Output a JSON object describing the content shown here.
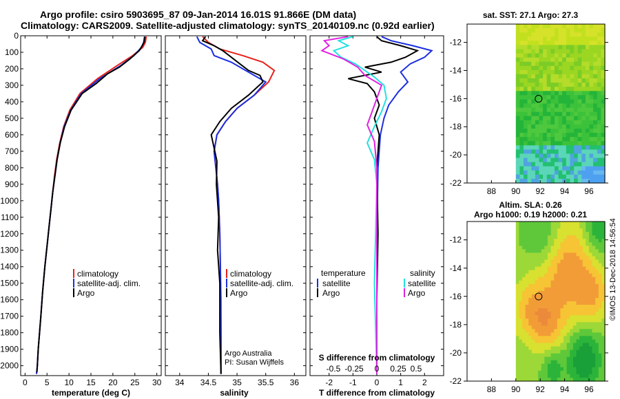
{
  "titles": {
    "line1": "Argo profile: csiro 5903695_87 09-Jan-2014 16.01S 91.866E (DM data)",
    "line2": "Climatology: CARS2009. Satellite-adjusted climatology: synTS_20140109.nc (0.92d earlier)"
  },
  "colors": {
    "climatology": "#e8201a",
    "satellite": "#1a2ee0",
    "argo": "#000000",
    "sat_t": "#1a2ee0",
    "sat_s": "#22e0e0",
    "argo_t": "#000000",
    "argo_s": "#e020e0"
  },
  "chart_data": [
    {
      "id": "temperature",
      "type": "line",
      "xlabel": "temperature (deg C)",
      "ylabel": "",
      "xlim": [
        -1,
        31
      ],
      "ylim": [
        2060,
        0
      ],
      "xticks": [
        0,
        5,
        10,
        15,
        20,
        25,
        30
      ],
      "yticks": [
        0,
        100,
        200,
        300,
        400,
        500,
        600,
        700,
        800,
        900,
        1000,
        1100,
        1200,
        1300,
        1400,
        1500,
        1600,
        1700,
        1800,
        1900,
        2000
      ],
      "legend": [
        "climatology",
        "satellite-adj. clim.",
        "Argo"
      ],
      "series": [
        {
          "name": "climatology",
          "color": "#e8201a",
          "x": [
            27.6,
            27.4,
            26.8,
            24.5,
            21,
            16.5,
            12.5,
            10.2,
            8.8,
            7.9,
            7.2,
            6.7,
            6.3,
            5.9,
            5.5,
            5.1,
            4.5,
            4.0,
            3.6,
            3.3,
            3.0,
            2.8,
            2.6
          ],
          "depth": [
            5,
            40,
            70,
            120,
            180,
            260,
            350,
            450,
            550,
            650,
            750,
            850,
            950,
            1050,
            1150,
            1250,
            1400,
            1550,
            1700,
            1800,
            1900,
            2000,
            2050
          ]
        },
        {
          "name": "satellite-adj. clim.",
          "color": "#1a2ee0",
          "x": [
            27.2,
            27.0,
            26.5,
            24.8,
            21.8,
            17,
            12.8,
            10.4,
            8.9,
            8.0,
            7.3,
            6.8,
            6.3,
            5.9,
            5.5,
            5.1,
            4.5,
            4.0,
            3.6,
            3.3,
            3.0,
            2.8,
            2.6
          ],
          "depth": [
            5,
            40,
            70,
            120,
            180,
            260,
            350,
            450,
            550,
            650,
            750,
            850,
            950,
            1050,
            1150,
            1250,
            1400,
            1550,
            1700,
            1800,
            1900,
            2000,
            2050
          ]
        },
        {
          "name": "Argo",
          "color": "#000000",
          "x": [
            27.3,
            27.1,
            26.0,
            23.9,
            21.5,
            18.8,
            16.2,
            13.0,
            10.5,
            9.0,
            8.0,
            7.3,
            6.8,
            6.3,
            5.9,
            5.5,
            5.1,
            4.5,
            4.0,
            3.6,
            3.3,
            3.0,
            2.8,
            2.7
          ],
          "depth": [
            5,
            40,
            90,
            140,
            190,
            230,
            290,
            350,
            450,
            550,
            650,
            750,
            850,
            950,
            1050,
            1150,
            1250,
            1400,
            1550,
            1700,
            1800,
            1900,
            2000,
            2040
          ]
        }
      ]
    },
    {
      "id": "salinity",
      "type": "line",
      "xlabel": "salinity",
      "xlim": [
        33.75,
        36.2
      ],
      "ylim": [
        2060,
        0
      ],
      "xticks": [
        34,
        34.5,
        35,
        35.5,
        36
      ],
      "legend": [
        "climatology",
        "satellite-adj. clim.",
        "Argo"
      ],
      "series": [
        {
          "name": "climatology",
          "color": "#e8201a",
          "x": [
            34.4,
            34.5,
            34.7,
            35.1,
            35.45,
            35.65,
            35.55,
            35.3,
            35.0,
            34.8,
            34.65,
            34.6,
            34.63,
            34.66,
            34.68,
            34.7,
            34.71,
            34.72,
            34.72,
            34.72
          ],
          "depth": [
            5,
            40,
            80,
            120,
            160,
            210,
            280,
            360,
            440,
            520,
            600,
            700,
            800,
            900,
            1000,
            1200,
            1400,
            1600,
            1800,
            2050
          ]
        },
        {
          "name": "satellite-adj. clim.",
          "color": "#1a2ee0",
          "x": [
            34.3,
            34.35,
            34.55,
            34.6,
            34.9,
            35.1,
            35.3,
            35.5,
            35.3,
            35.0,
            34.8,
            34.65,
            34.6,
            34.63,
            34.66,
            34.68,
            34.7,
            34.71,
            34.72,
            34.72
          ],
          "depth": [
            5,
            40,
            80,
            120,
            160,
            200,
            240,
            280,
            360,
            440,
            520,
            600,
            700,
            800,
            900,
            1000,
            1200,
            1400,
            1800,
            2050
          ]
        },
        {
          "name": "Argo",
          "color": "#000000",
          "x": [
            34.45,
            34.4,
            34.6,
            34.75,
            34.9,
            35.05,
            35.2,
            35.4,
            35.45,
            35.2,
            34.9,
            34.7,
            34.55,
            34.6,
            34.65,
            34.64,
            34.68,
            34.66,
            34.7,
            34.7,
            34.72
          ],
          "depth": [
            5,
            30,
            60,
            90,
            130,
            170,
            210,
            240,
            280,
            360,
            440,
            520,
            600,
            680,
            760,
            900,
            1100,
            1300,
            1500,
            1800,
            2050
          ]
        }
      ]
    },
    {
      "id": "difference",
      "type": "line",
      "xlabel": "T difference from climatology",
      "xlim": [
        -2.8,
        2.8
      ],
      "ylim": [
        2060,
        0
      ],
      "xticks": [
        -2,
        -1,
        0,
        1,
        2
      ],
      "s_axis_label": "S difference from climatology",
      "s_ticks": [
        "-0.5",
        "-0.25",
        "0",
        "0.25",
        "0.5"
      ],
      "legend_left": {
        "title": "temperature",
        "items": [
          "satellite",
          "Argo"
        ]
      },
      "legend_right": {
        "title": "salinity",
        "items": [
          "satellite",
          "Argo"
        ]
      },
      "series": [
        {
          "name": "temperature satellite",
          "color": "#1a2ee0",
          "x": [
            0.2,
            0.6,
            1.5,
            2.3,
            2.0,
            1.4,
            1.0,
            1.3,
            0.9,
            0.5,
            0.3,
            0.15,
            0.05,
            0,
            0,
            0
          ],
          "depth": [
            5,
            30,
            60,
            90,
            130,
            170,
            220,
            280,
            340,
            420,
            500,
            600,
            800,
            1200,
            1600,
            2050
          ]
        },
        {
          "name": "temperature Argo",
          "color": "#000000",
          "x": [
            0,
            0.2,
            1.0,
            1.7,
            1.2,
            0.6,
            -0.5,
            0.2,
            -1.2,
            -0.4,
            -0.1,
            0.1,
            -0.1,
            0.1,
            0,
            0.05,
            0,
            0
          ],
          "depth": [
            5,
            30,
            60,
            90,
            130,
            160,
            190,
            220,
            260,
            290,
            340,
            420,
            500,
            600,
            800,
            1200,
            1600,
            2050
          ]
        },
        {
          "name": "salinity satellite",
          "color": "#22e0e0",
          "x": [
            -1.0,
            -1.6,
            -1.2,
            -1.8,
            -1.5,
            -0.9,
            -0.5,
            -0.1,
            0.3,
            0.4,
            0.2,
            -0.1,
            -0.4,
            -0.1,
            0,
            -0.1,
            0
          ],
          "depth": [
            5,
            30,
            60,
            90,
            130,
            170,
            210,
            250,
            300,
            380,
            460,
            550,
            650,
            750,
            900,
            1500,
            2050
          ]
        },
        {
          "name": "salinity Argo",
          "color": "#e020e0",
          "x": [
            -1.2,
            -2.2,
            -2.0,
            -2.3,
            -1.4,
            -0.8,
            -0.5,
            0.2,
            0.0,
            -0.2,
            -0.4,
            -0.1,
            0,
            0
          ],
          "depth": [
            5,
            30,
            60,
            90,
            140,
            190,
            240,
            300,
            380,
            460,
            540,
            640,
            800,
            2050
          ]
        }
      ]
    },
    {
      "id": "sst_map",
      "type": "heatmap",
      "title": "sat. SST: 27.1 Argo: 27.3",
      "xlim": [
        86,
        97.3
      ],
      "ylim": [
        -22,
        -10.7
      ],
      "xticks": [
        88,
        90,
        92,
        94,
        96
      ],
      "yticks": [
        -12,
        -14,
        -16,
        -18,
        -20,
        -22
      ],
      "marker": {
        "lon": 91.866,
        "lat": -16.01
      }
    },
    {
      "id": "sla_map",
      "type": "heatmap",
      "title_line1": "Altim. SLA: 0.26",
      "title_line2": "Argo h1000: 0.19 h2000: 0.21",
      "xlim": [
        86,
        97.3
      ],
      "ylim": [
        -22,
        -10.7
      ],
      "xticks": [
        88,
        90,
        92,
        94,
        96
      ],
      "yticks": [
        -12,
        -14,
        -16,
        -18,
        -20,
        -22
      ],
      "marker": {
        "lon": 91.866,
        "lat": -16.01
      }
    }
  ],
  "legend_labels": {
    "climatology": "climatology",
    "satellite_adj": "satellite-adj. clim.",
    "argo": "Argo",
    "temperature": "temperature",
    "salinity": "salinity",
    "satellite": "satellite"
  },
  "credits": {
    "line1": "Argo Australia",
    "line2": "PI: Susan Wijffels"
  },
  "footer": {
    "stamp": "©IMOS 13-Dec-2018 14:56:54"
  }
}
